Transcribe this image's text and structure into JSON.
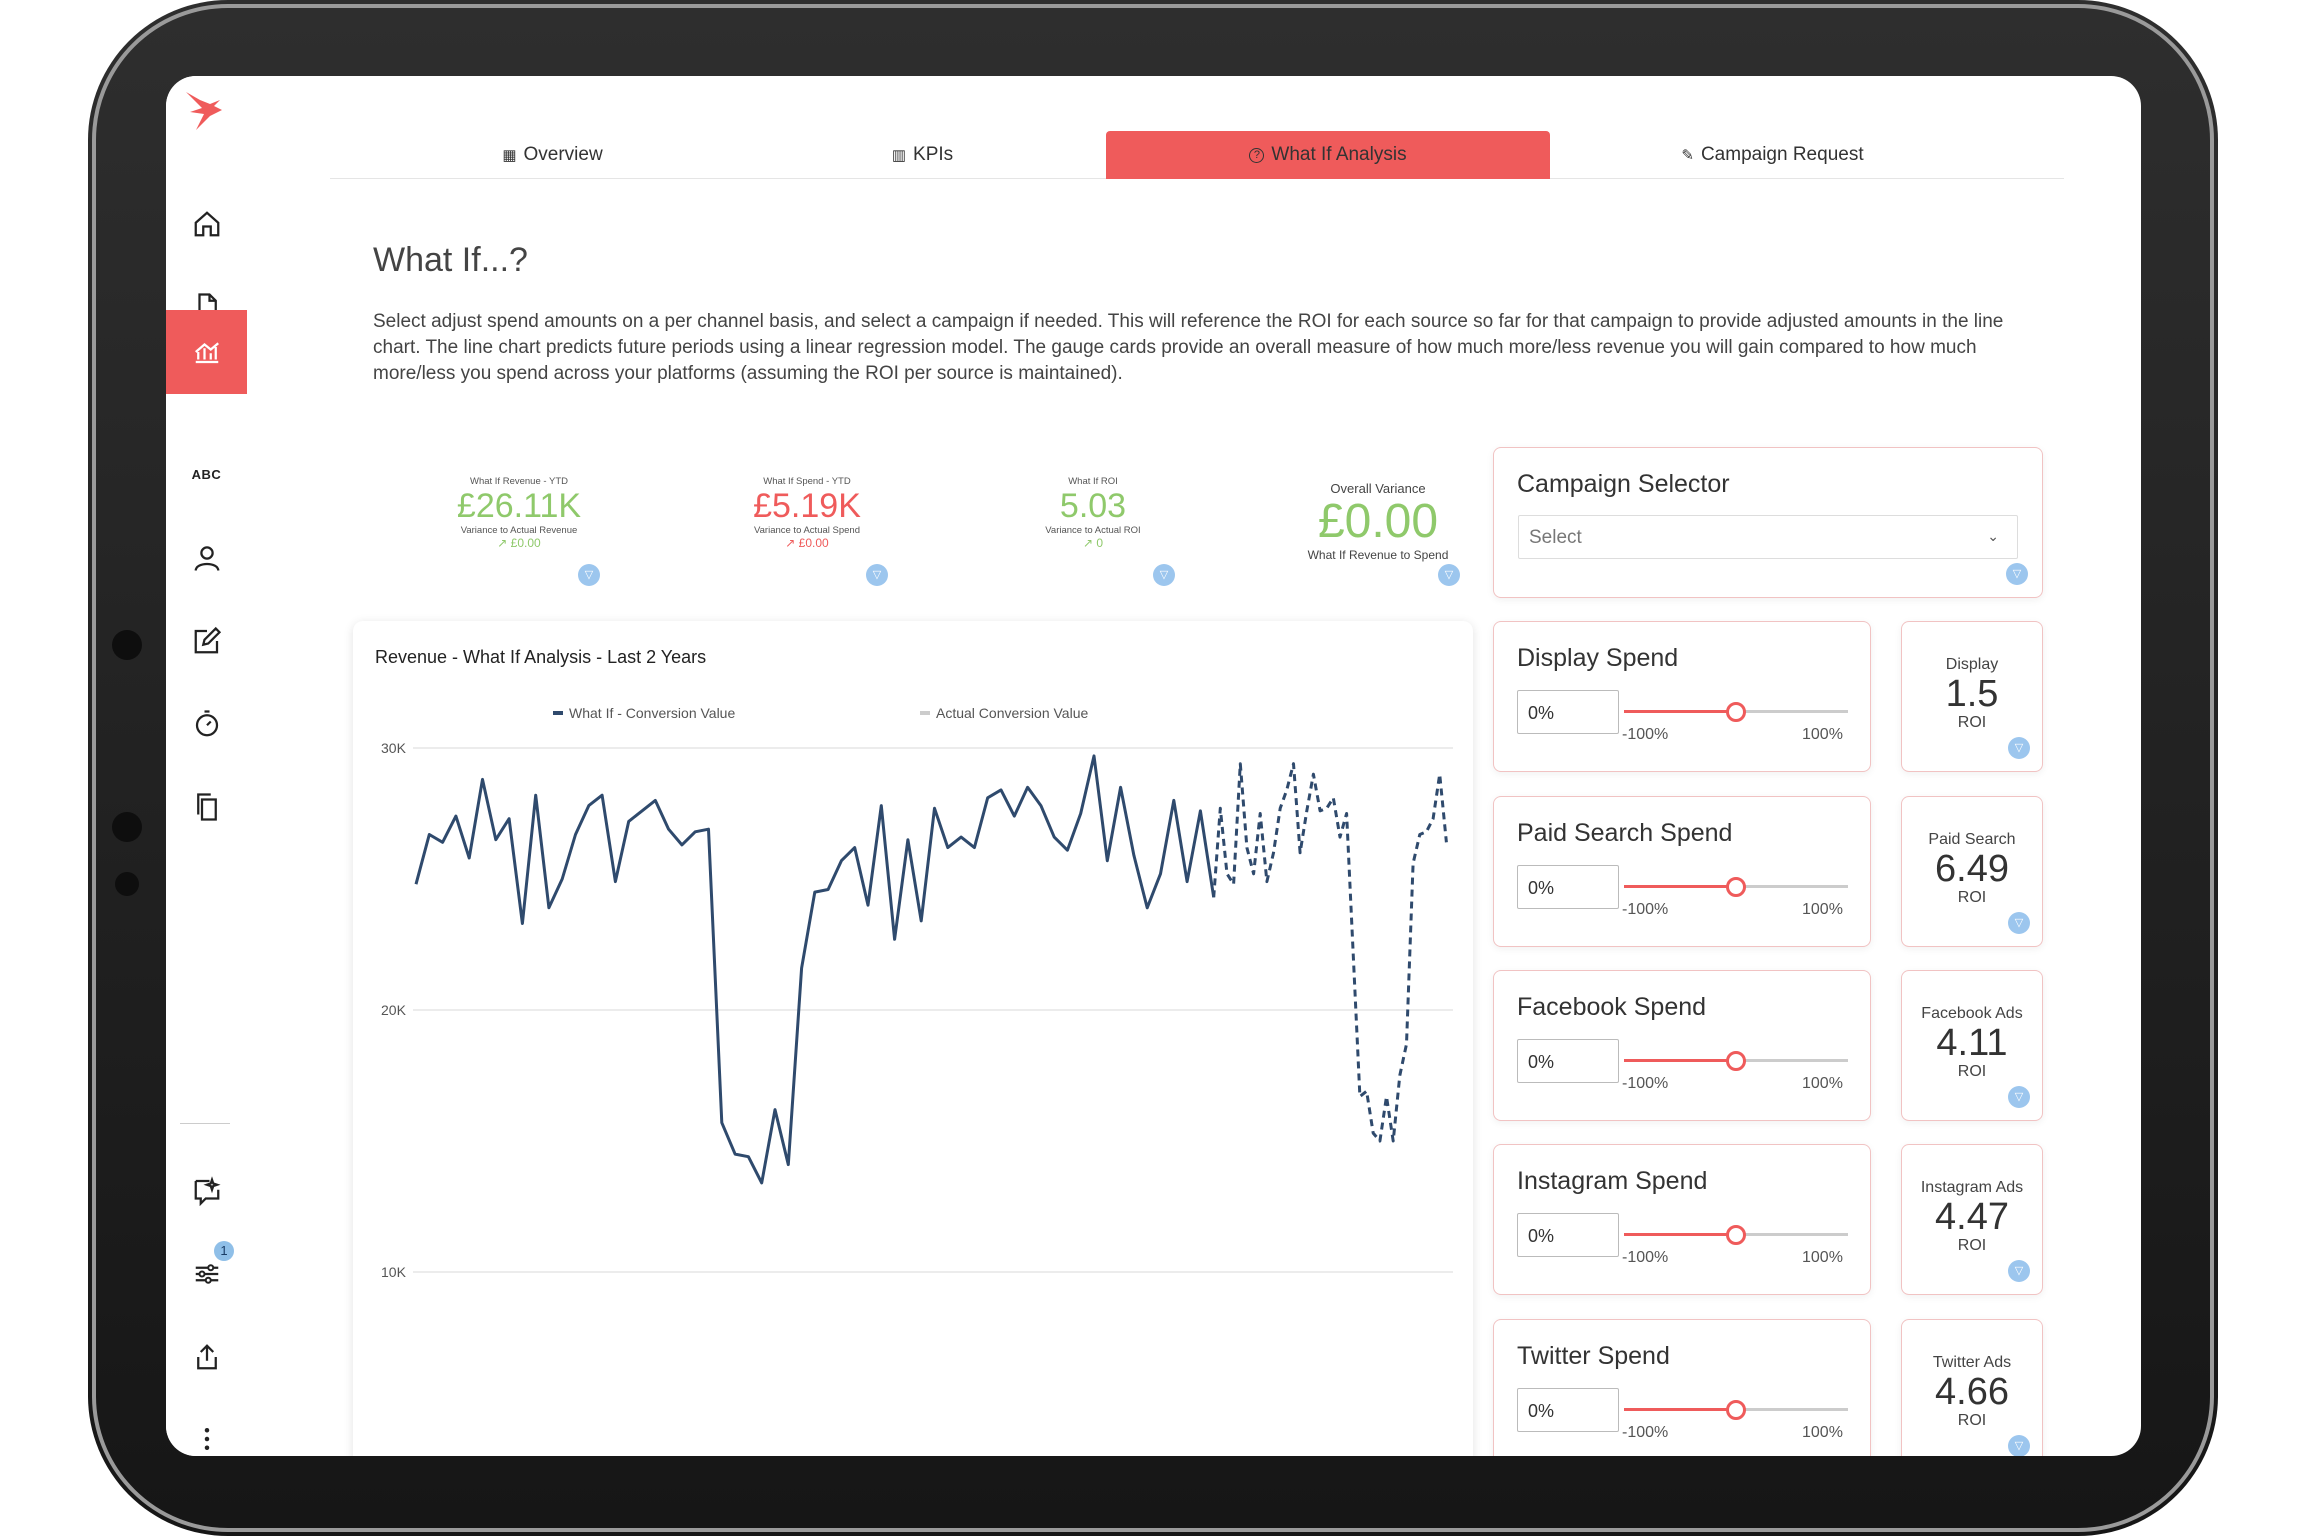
{
  "tabs": [
    {
      "label": "Overview",
      "icon": "▦"
    },
    {
      "label": "KPIs",
      "icon": "▥"
    },
    {
      "label": "What If Analysis",
      "icon": "?"
    },
    {
      "label": "Campaign Request",
      "icon": "✎"
    }
  ],
  "page": {
    "title": "What If...?",
    "description": "Select adjust spend amounts on a per channel basis, and select a campaign if needed. This will reference the ROI for each source so far for that campaign to provide adjusted amounts in the line chart. The line chart predicts future periods using a linear regression model. The gauge cards provide an overall measure of how much more/less revenue you will gain compared to how much more/less you spend across your platforms (assuming the ROI per source is maintained)."
  },
  "sidebar": {
    "abc_label": "ABC",
    "notification_count": "1"
  },
  "kpis": [
    {
      "label": "What If Revenue - YTD",
      "value": "£26.11K",
      "sub": "Variance to Actual Revenue",
      "delta": "↗ £0.00",
      "color": "green"
    },
    {
      "label": "What If Spend - YTD",
      "value": "£5.19K",
      "sub": "Variance to Actual Spend",
      "delta": "↗ £0.00",
      "color": "red"
    },
    {
      "label": "What If ROI",
      "value": "5.03",
      "sub": "Variance to Actual ROI",
      "delta": "↗ 0",
      "color": "green"
    },
    {
      "label": "Overall Variance",
      "value": "£0.00",
      "sub": "What If Revenue to Spend",
      "color": "green"
    }
  ],
  "campaign_selector": {
    "title": "Campaign Selector",
    "placeholder": "Select"
  },
  "spend_cards": [
    {
      "title": "Display Spend",
      "value": "0%",
      "min": "-100%",
      "max": "100%",
      "slider_value": 0
    },
    {
      "title": "Paid Search Spend",
      "value": "0%",
      "min": "-100%",
      "max": "100%",
      "slider_value": 0
    },
    {
      "title": "Facebook Spend",
      "value": "0%",
      "min": "-100%",
      "max": "100%",
      "slider_value": 0
    },
    {
      "title": "Instagram Spend",
      "value": "0%",
      "min": "-100%",
      "max": "100%",
      "slider_value": 0
    },
    {
      "title": "Twitter Spend",
      "value": "0%",
      "min": "-100%",
      "max": "100%",
      "slider_value": 0
    }
  ],
  "roi_cards": [
    {
      "name": "Display",
      "value": "1.5",
      "label": "ROI"
    },
    {
      "name": "Paid Search",
      "value": "6.49",
      "label": "ROI"
    },
    {
      "name": "Facebook Ads",
      "value": "4.11",
      "label": "ROI"
    },
    {
      "name": "Instagram Ads",
      "value": "4.47",
      "label": "ROI"
    },
    {
      "name": "Twitter Ads",
      "value": "4.66",
      "label": "ROI"
    }
  ],
  "colors": {
    "accent": "#ef5b5b",
    "positive": "#8fc96b",
    "series_what_if": "#2f4a6d",
    "series_actual": "#cccccc",
    "filter_icon": "#9cc6ee"
  },
  "chart_data": {
    "type": "line",
    "title": "Revenue - What If Analysis - Last 2 Years",
    "xlabel": "",
    "ylabel": "",
    "ylim": [
      5000,
      30000
    ],
    "yticks": [
      "30K",
      "20K",
      "10K"
    ],
    "ytick_values": [
      30000,
      20000,
      10000
    ],
    "grid": true,
    "legend": "top",
    "series": [
      {
        "name": "What If - Conversion Value",
        "style": "solid",
        "values": [
          24800,
          26700,
          26400,
          27400,
          25800,
          28800,
          26500,
          27300,
          23300,
          28200,
          23900,
          25000,
          26700,
          27800,
          28200,
          24900,
          27200,
          27600,
          28000,
          26900,
          26300,
          26800,
          26900,
          15700,
          14500,
          14400,
          13400,
          16200,
          14100,
          21600,
          24500,
          24600,
          25700,
          26200,
          24000,
          27800,
          22700,
          26500,
          23400,
          27700,
          26200,
          26600,
          26200,
          28100,
          28400,
          27400,
          28500,
          27800,
          26600,
          26100,
          27500,
          29700,
          25700,
          28500,
          25900,
          23900,
          25200,
          28000,
          24900,
          27600,
          24300
        ],
        "x": [
          0,
          1,
          2,
          3,
          4,
          5,
          6,
          7,
          8,
          9,
          10,
          11,
          12,
          13,
          14,
          15,
          16,
          17,
          18,
          19,
          20,
          21,
          22,
          23,
          24,
          25,
          26,
          27,
          28,
          29,
          30,
          31,
          32,
          33,
          34,
          35,
          36,
          37,
          38,
          39,
          40,
          41,
          42,
          43,
          44,
          45,
          46,
          47,
          48,
          49,
          50,
          51,
          52,
          53,
          54,
          55,
          56,
          57,
          58,
          59,
          60
        ]
      },
      {
        "name": "Actual Conversion Value",
        "style": "dashed",
        "values": [
          24300,
          27700,
          25200,
          24800,
          29400,
          26200,
          25200,
          27500,
          24900,
          26000,
          27700,
          28400,
          29400,
          26000,
          27600,
          29000,
          27600,
          27700,
          28100,
          26600,
          27500,
          16700,
          16900,
          15300,
          15000,
          16700,
          15000,
          17500,
          18700,
          25600,
          26700,
          26800,
          27300,
          29000,
          26400
        ],
        "x": [
          60,
          60.5,
          61,
          61.5,
          62,
          62.5,
          63,
          63.5,
          64,
          64.5,
          65,
          65.5,
          66,
          66.5,
          67,
          67.5,
          68,
          68.5,
          69,
          69.5,
          70,
          71,
          71.5,
          72,
          72.5,
          73,
          73.5,
          74,
          74.5,
          75,
          75.5,
          76,
          76.5,
          77,
          77.5
        ]
      }
    ]
  }
}
